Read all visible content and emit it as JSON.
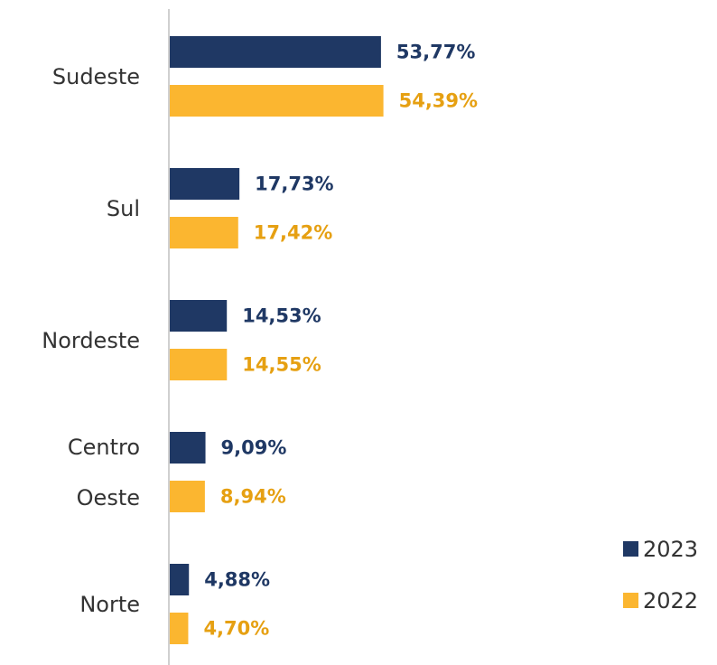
{
  "chart_data": {
    "type": "bar",
    "orientation": "horizontal",
    "categories": [
      "Sudeste",
      "Sul",
      "Nordeste",
      "Centro Oeste",
      "Norte"
    ],
    "series": [
      {
        "name": "2023",
        "color": "#1f3864",
        "values": [
          53.77,
          17.73,
          14.53,
          9.09,
          4.88
        ],
        "value_labels": [
          "53,77%",
          "17,73%",
          "14,53%",
          "9,09%",
          "4,88%"
        ]
      },
      {
        "name": "2022",
        "color": "#fbb630",
        "values": [
          54.39,
          17.42,
          14.55,
          8.94,
          4.7
        ],
        "value_labels": [
          "54,39%",
          "17,42%",
          "14,55%",
          "8,94%",
          "4,70%"
        ]
      }
    ],
    "legend": "bottom-right"
  }
}
